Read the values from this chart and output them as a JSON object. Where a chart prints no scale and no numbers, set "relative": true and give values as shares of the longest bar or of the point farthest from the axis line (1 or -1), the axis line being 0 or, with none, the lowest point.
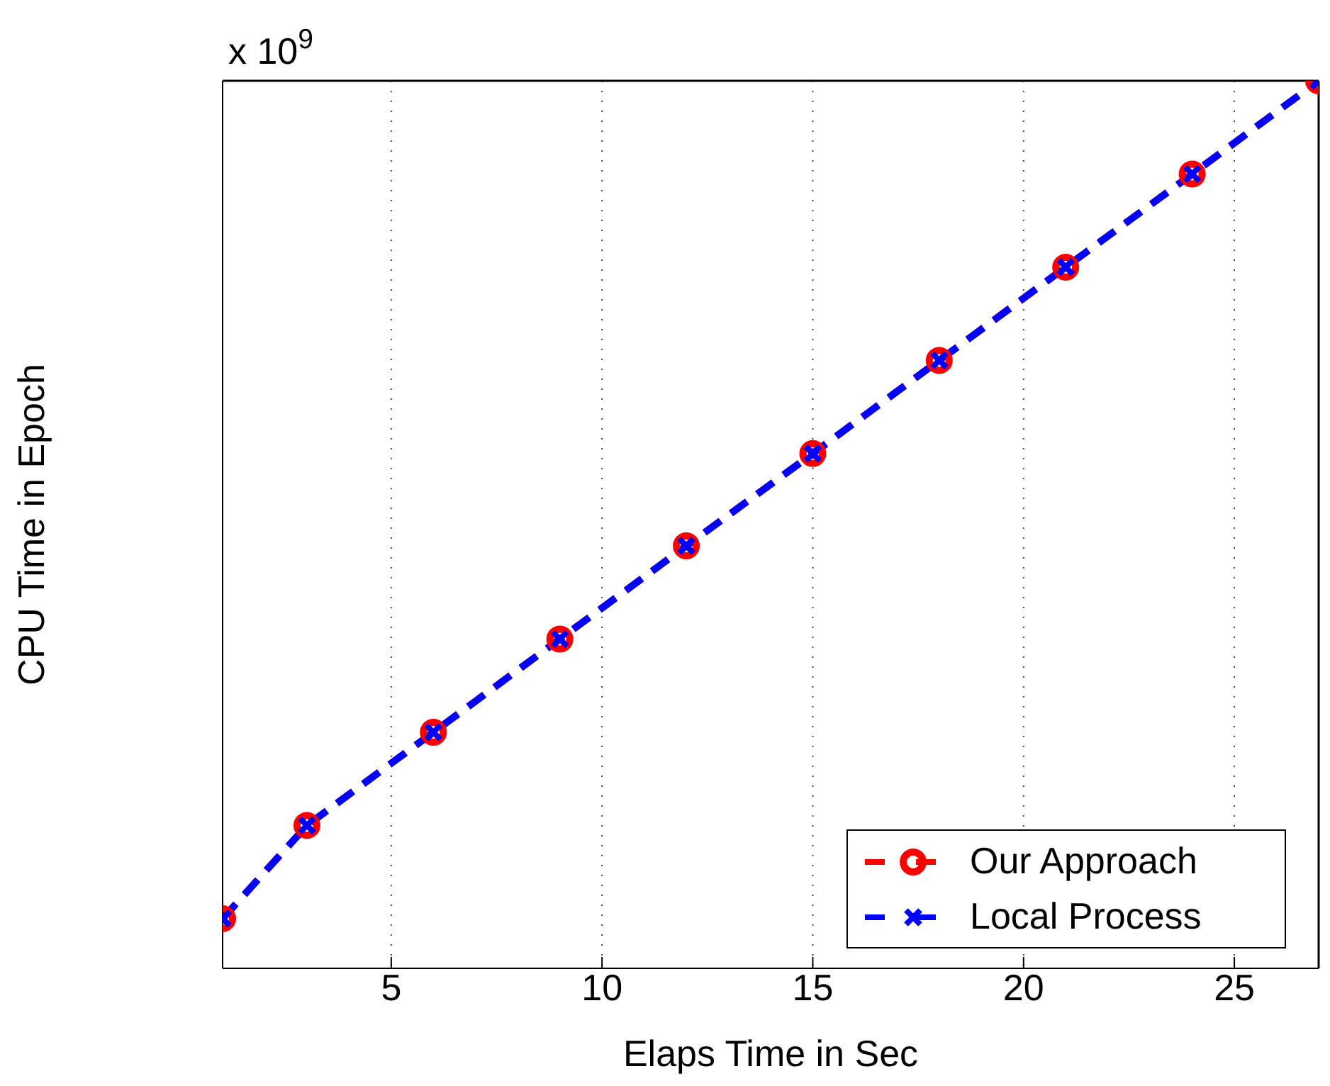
{
  "chart_data": {
    "type": "line",
    "xlabel": "Elaps Time in Sec",
    "ylabel": "CPU Time in Epoch",
    "annotations": [
      "x 10$^{9}$"
    ],
    "relative": true,
    "x": [
      1,
      3,
      6,
      9,
      12,
      15,
      18,
      21,
      24,
      27
    ],
    "series": [
      {
        "name": "Our Approach",
        "color": "#ff0000",
        "marker": "circle",
        "values": [
          0.056,
          0.161,
          0.266,
          0.371,
          0.476,
          0.58,
          0.685,
          0.79,
          0.895,
          1
        ]
      },
      {
        "name": "Local Process",
        "color": "#0000ff",
        "marker": "cross",
        "values": [
          0.056,
          0.161,
          0.266,
          0.371,
          0.476,
          0.58,
          0.685,
          0.79,
          0.895,
          1
        ]
      }
    ],
    "xlim": [
      1,
      27
    ],
    "xticks": [
      5,
      10,
      15,
      20,
      25
    ],
    "grid": "x",
    "legend": "bottom right",
    "line_style": "dashed"
  }
}
